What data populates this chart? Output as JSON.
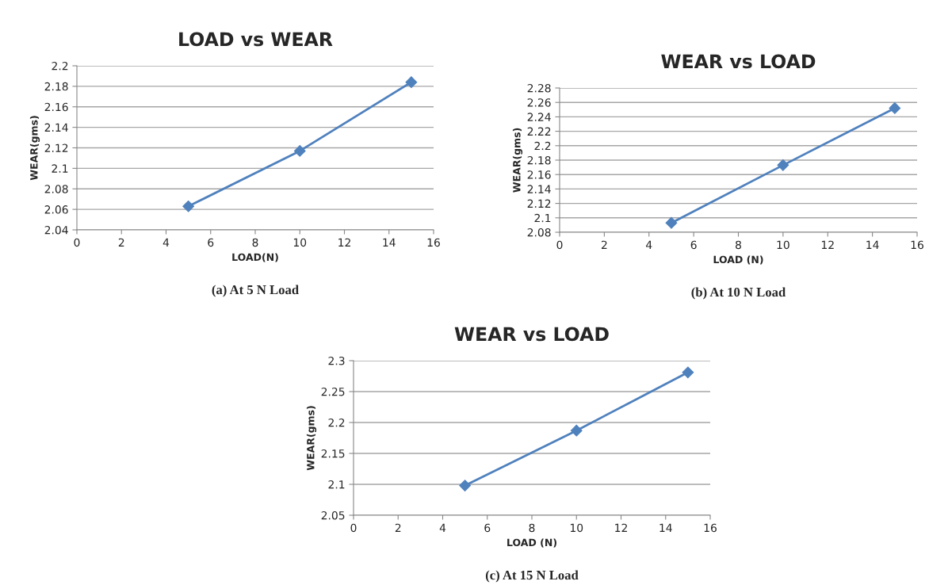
{
  "chart_data": [
    {
      "type": "line",
      "title": "LOAD vs WEAR",
      "xlabel": "LOAD(N)",
      "ylabel": "WEAR(gms)",
      "x": [
        5,
        10,
        15
      ],
      "series": [
        {
          "color": "#4f81bd",
          "values": [
            2.063,
            2.117,
            2.184
          ]
        }
      ],
      "xlim": [
        0,
        16
      ],
      "xticks": [
        0,
        2,
        4,
        6,
        8,
        10,
        12,
        14,
        16
      ],
      "ylim": [
        2.04,
        2.2
      ],
      "yticks": [
        2.04,
        2.06,
        2.08,
        2.1,
        2.12,
        2.14,
        2.16,
        2.18,
        2.2
      ],
      "grid": "y",
      "marker": "diamond",
      "annotations": [
        "(a) At 5 N Load"
      ]
    },
    {
      "type": "line",
      "title": "WEAR vs LOAD",
      "xlabel": "LOAD (N)",
      "ylabel": "WEAR(gms)",
      "x": [
        5,
        10,
        15
      ],
      "series": [
        {
          "color": "#4f81bd",
          "values": [
            2.093,
            2.173,
            2.252
          ]
        }
      ],
      "xlim": [
        0,
        16
      ],
      "xticks": [
        0,
        2,
        4,
        6,
        8,
        10,
        12,
        14,
        16
      ],
      "ylim": [
        2.08,
        2.28
      ],
      "yticks": [
        2.08,
        2.1,
        2.12,
        2.14,
        2.16,
        2.18,
        2.2,
        2.22,
        2.24,
        2.26,
        2.28
      ],
      "grid": "y",
      "marker": "diamond",
      "annotations": [
        "(b) At 10 N Load"
      ]
    },
    {
      "type": "line",
      "title": "WEAR vs LOAD",
      "xlabel": "LOAD (N)",
      "ylabel": "WEAR(gms)",
      "x": [
        5,
        10,
        15
      ],
      "series": [
        {
          "color": "#4f81bd",
          "values": [
            2.098,
            2.187,
            2.281
          ]
        }
      ],
      "xlim": [
        0,
        16
      ],
      "xticks": [
        0,
        2,
        4,
        6,
        8,
        10,
        12,
        14,
        16
      ],
      "ylim": [
        2.05,
        2.3
      ],
      "yticks": [
        2.05,
        2.1,
        2.15,
        2.2,
        2.25,
        2.3
      ],
      "grid": "y",
      "marker": "diamond",
      "annotations": [
        "(c) At 15 N Load"
      ]
    }
  ]
}
